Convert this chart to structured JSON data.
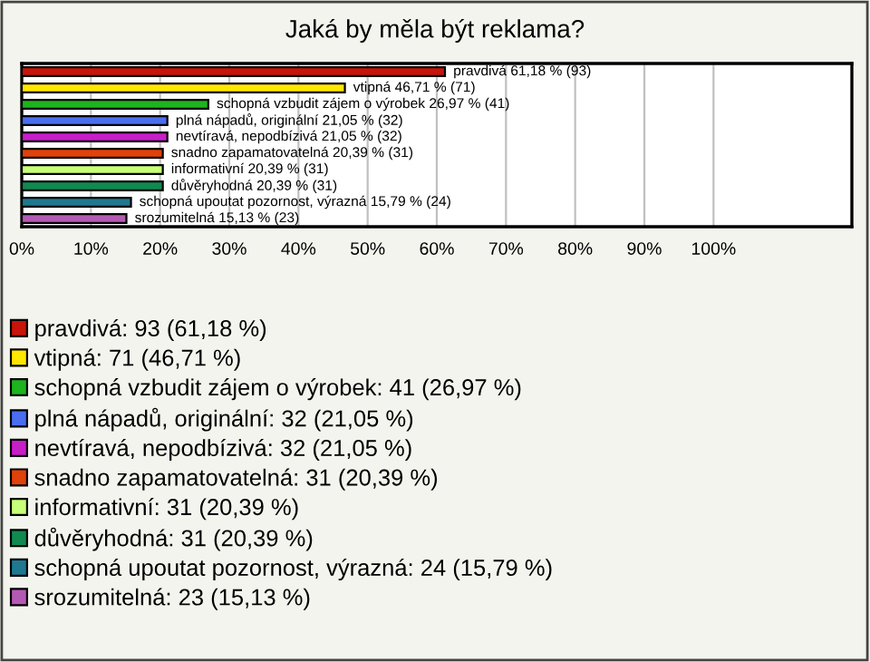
{
  "chart_data": {
    "type": "bar",
    "orientation": "horizontal",
    "title": "Jaká by měla být reklama?",
    "categories": [
      null,
      null,
      null,
      null,
      null,
      null,
      null,
      null,
      null,
      null
    ],
    "series": [
      {
        "name": "pravdivá: 93 (61,18 %)",
        "color": "#c8140a",
        "values": [
          61.18,
          null,
          null,
          null,
          null,
          null,
          null,
          null,
          null,
          null
        ],
        "value_labels": [
          "pravdivá 61,18 % (93)",
          null,
          null,
          null,
          null,
          null,
          null,
          null,
          null,
          null
        ]
      },
      {
        "name": "vtipná: 71 (46,71 %)",
        "color": "#ffe600",
        "values": [
          null,
          46.71,
          null,
          null,
          null,
          null,
          null,
          null,
          null,
          null
        ],
        "value_labels": [
          null,
          "vtipná 46,71 % (71)",
          null,
          null,
          null,
          null,
          null,
          null,
          null,
          null
        ]
      },
      {
        "name": "schopná vzbudit zájem o výrobek: 41 (26,97 %)",
        "color": "#1eb41e",
        "values": [
          null,
          null,
          26.97,
          null,
          null,
          null,
          null,
          null,
          null,
          null
        ],
        "value_labels": [
          null,
          null,
          "schopná vzbudit zájem o výrobek 26,97 % (41)",
          null,
          null,
          null,
          null,
          null,
          null,
          null
        ]
      },
      {
        "name": "plná nápadů, originální: 32 (21,05 %)",
        "color": "#4a6ef0",
        "values": [
          null,
          null,
          null,
          21.05,
          null,
          null,
          null,
          null,
          null,
          null
        ],
        "value_labels": [
          null,
          null,
          null,
          "plná nápadů, originální 21,05 % (32)",
          null,
          null,
          null,
          null,
          null,
          null
        ]
      },
      {
        "name": "nevtíravá, nepodbízivá: 32 (21,05 %)",
        "color": "#c81ec8",
        "values": [
          null,
          null,
          null,
          null,
          21.05,
          null,
          null,
          null,
          null,
          null
        ],
        "value_labels": [
          null,
          null,
          null,
          null,
          "nevtíravá, nepodbízivá 21,05 % (32)",
          null,
          null,
          null,
          null,
          null
        ]
      },
      {
        "name": "snadno zapamatovatelná: 31 (20,39 %)",
        "color": "#e0420a",
        "values": [
          null,
          null,
          null,
          null,
          null,
          20.39,
          null,
          null,
          null,
          null
        ],
        "value_labels": [
          null,
          null,
          null,
          null,
          null,
          "snadno zapamatovatelná 20,39 % (31)",
          null,
          null,
          null,
          null
        ]
      },
      {
        "name": "informativní: 31 (20,39 %)",
        "color": "#c8ff78",
        "values": [
          null,
          null,
          null,
          null,
          null,
          null,
          20.39,
          null,
          null,
          null
        ],
        "value_labels": [
          null,
          null,
          null,
          null,
          null,
          null,
          "informativní 20,39 % (31)",
          null,
          null,
          null
        ]
      },
      {
        "name": "důvěryhodná: 31 (20,39 %)",
        "color": "#108a50",
        "values": [
          null,
          null,
          null,
          null,
          null,
          null,
          null,
          20.39,
          null,
          null
        ],
        "value_labels": [
          null,
          null,
          null,
          null,
          null,
          null,
          null,
          "důvěryhodná 20,39 % (31)",
          null,
          null
        ]
      },
      {
        "name": "schopná upoutat pozornost, výrazná: 24 (15,79 %)",
        "color": "#1e7890",
        "values": [
          null,
          null,
          null,
          null,
          null,
          null,
          null,
          null,
          15.79,
          null
        ],
        "value_labels": [
          null,
          null,
          null,
          null,
          null,
          null,
          null,
          null,
          "schopná upoutat pozornost, výrazná 15,79 % (24)",
          null
        ]
      },
      {
        "name": "srozumitelná: 23 (15,13 %)",
        "color": "#b45ab4",
        "values": [
          null,
          null,
          null,
          null,
          null,
          null,
          null,
          null,
          null,
          15.13
        ],
        "value_labels": [
          null,
          null,
          null,
          null,
          null,
          null,
          null,
          null,
          null,
          "srozumitelná 15,13 % (23)"
        ]
      }
    ],
    "xlim": [
      0,
      120
    ],
    "xticks": [
      {
        "value": 0,
        "label": "0%"
      },
      {
        "value": 10,
        "label": "10%"
      },
      {
        "value": 20,
        "label": "20%"
      },
      {
        "value": 30,
        "label": "30%"
      },
      {
        "value": 40,
        "label": "40%"
      },
      {
        "value": 50,
        "label": "50%"
      },
      {
        "value": 60,
        "label": "60%"
      },
      {
        "value": 70,
        "label": "70%"
      },
      {
        "value": 80,
        "label": "80%"
      },
      {
        "value": 90,
        "label": "90%"
      },
      {
        "value": 100,
        "label": "100%"
      }
    ],
    "grid": "x",
    "legend": "bottom"
  }
}
